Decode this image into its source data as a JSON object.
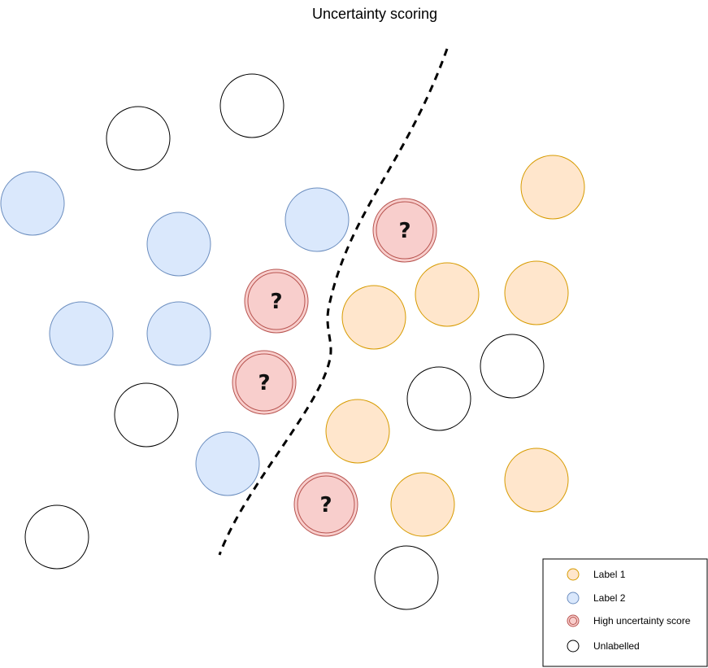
{
  "title": "Uncertainty scoring",
  "colors": {
    "label1_fill": "#ffe6cc",
    "label1_stroke": "#d79b00",
    "label2_fill": "#dae8fc",
    "label2_stroke": "#6c8ebf",
    "uncertain_fill": "#f8cecc",
    "uncertain_stroke": "#b85450",
    "unlabelled_fill": "#ffffff",
    "unlabelled_stroke": "#000000"
  },
  "uncertain_marker": "?",
  "legend": {
    "items": [
      {
        "kind": "label1",
        "label": "Label 1"
      },
      {
        "kind": "label2",
        "label": "Label 2"
      },
      {
        "kind": "uncertain",
        "label": "High uncertainty score"
      },
      {
        "kind": "unlabelled",
        "label": "Unlabelled"
      }
    ]
  },
  "boundary": {
    "style": "dashed",
    "icon": "decision-boundary-line"
  }
}
